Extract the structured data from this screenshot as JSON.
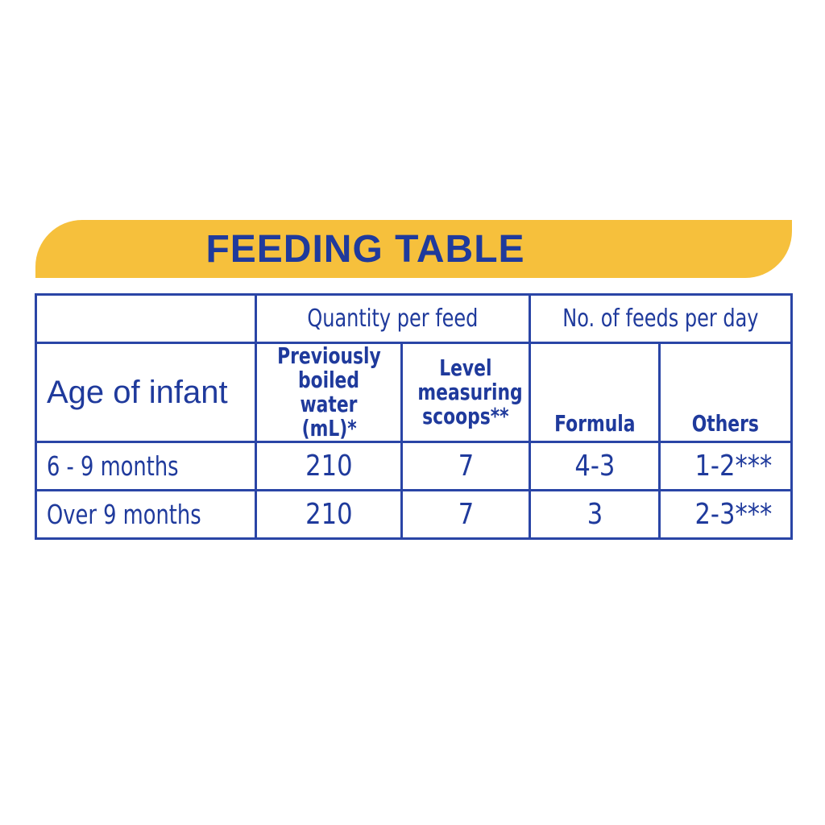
{
  "title": "FEEDING TABLE",
  "header": {
    "group1": "Quantity per feed",
    "group2": "No. of feeds per day",
    "age": "Age of infant",
    "water": [
      "Previously",
      "boiled water",
      "(mL)*"
    ],
    "scoops": [
      "Level",
      "measuring",
      "scoops**"
    ],
    "formula": "Formula",
    "others": "Others"
  },
  "rows": [
    {
      "age": "6 - 9 months",
      "water": "210",
      "scoops": "7",
      "formula": "4-3",
      "others": "1-2***"
    },
    {
      "age": "Over 9 months",
      "water": "210",
      "scoops": "7",
      "formula": "3",
      "others": "2-3***"
    }
  ],
  "colors": {
    "accent": "#f6c03c",
    "text": "#1f3a9c",
    "border": "#2a45a6"
  }
}
